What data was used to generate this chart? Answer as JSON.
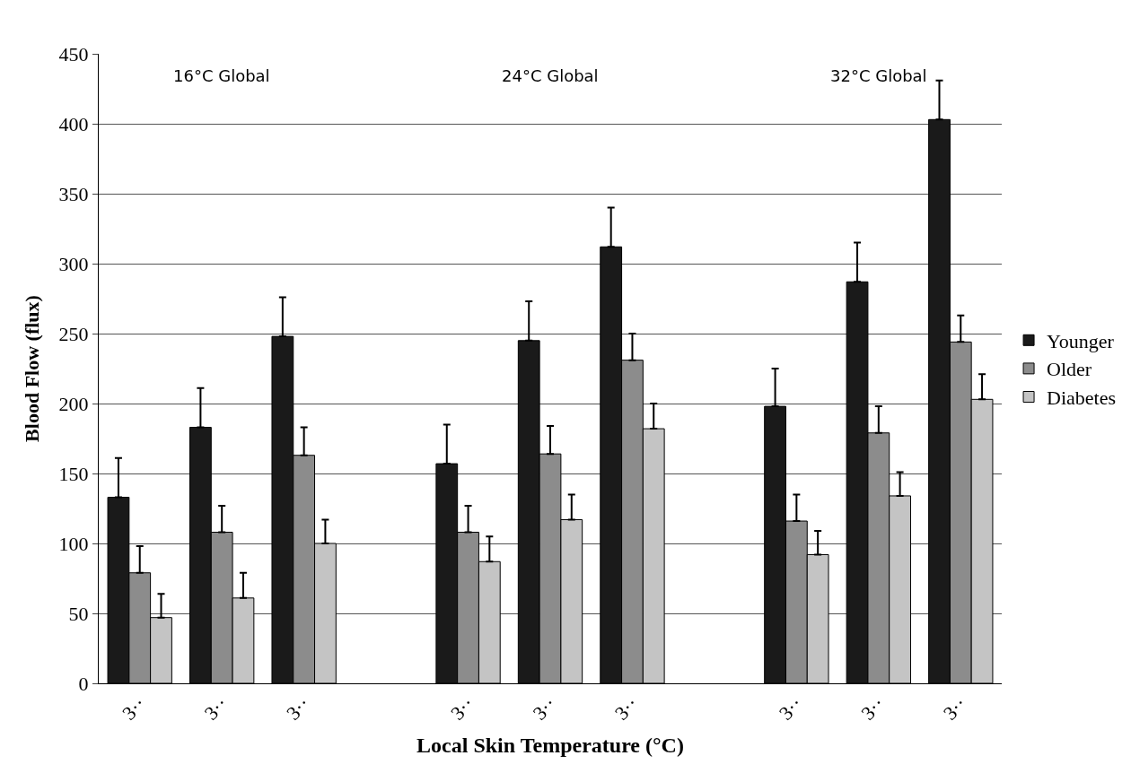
{
  "chart_data": {
    "type": "bar",
    "xlabel": "Local Skin Temperature (°C)",
    "ylabel": "Blood Flow (flux)",
    "categories": [
      "3··",
      "3··",
      "3··",
      null,
      "3··",
      "3··",
      "3··",
      null,
      "3··",
      "3··",
      "3··"
    ],
    "series": [
      {
        "name": "Younger",
        "color": "#1a1a1a",
        "values": [
          133,
          183,
          248,
          null,
          157,
          245,
          312,
          null,
          198,
          287,
          403
        ],
        "errors": [
          [
            133,
            161
          ],
          [
            183,
            211
          ],
          [
            248,
            276
          ],
          null,
          [
            157,
            185
          ],
          [
            245,
            273
          ],
          [
            312,
            340
          ],
          null,
          [
            198,
            225
          ],
          [
            287,
            315
          ],
          [
            403,
            431
          ]
        ]
      },
      {
        "name": "Older",
        "color": "#8c8c8c",
        "values": [
          79,
          108,
          163,
          null,
          108,
          164,
          231,
          null,
          116,
          179,
          244
        ],
        "errors": [
          [
            79,
            98
          ],
          [
            108,
            127
          ],
          [
            163,
            183
          ],
          null,
          [
            108,
            127
          ],
          [
            164,
            184
          ],
          [
            231,
            250
          ],
          null,
          [
            116,
            135
          ],
          [
            179,
            198
          ],
          [
            244,
            263
          ]
        ]
      },
      {
        "name": "Diabetes",
        "color": "#c4c4c4",
        "values": [
          47,
          61,
          100,
          null,
          87,
          117,
          182,
          null,
          92,
          134,
          203
        ],
        "errors": [
          [
            47,
            64
          ],
          [
            61,
            79
          ],
          [
            100,
            117
          ],
          null,
          [
            87,
            105
          ],
          [
            117,
            135
          ],
          [
            182,
            200
          ],
          null,
          [
            92,
            109
          ],
          [
            134,
            151
          ],
          [
            203,
            221
          ]
        ]
      }
    ],
    "annotations": [
      "16°C Global",
      "24°C Global",
      "32°C Global"
    ],
    "ylim": [
      0,
      450
    ],
    "yticks": [
      0,
      50,
      100,
      150,
      200,
      250,
      300,
      350,
      400,
      450
    ],
    "grid": "y",
    "legend": "right"
  }
}
